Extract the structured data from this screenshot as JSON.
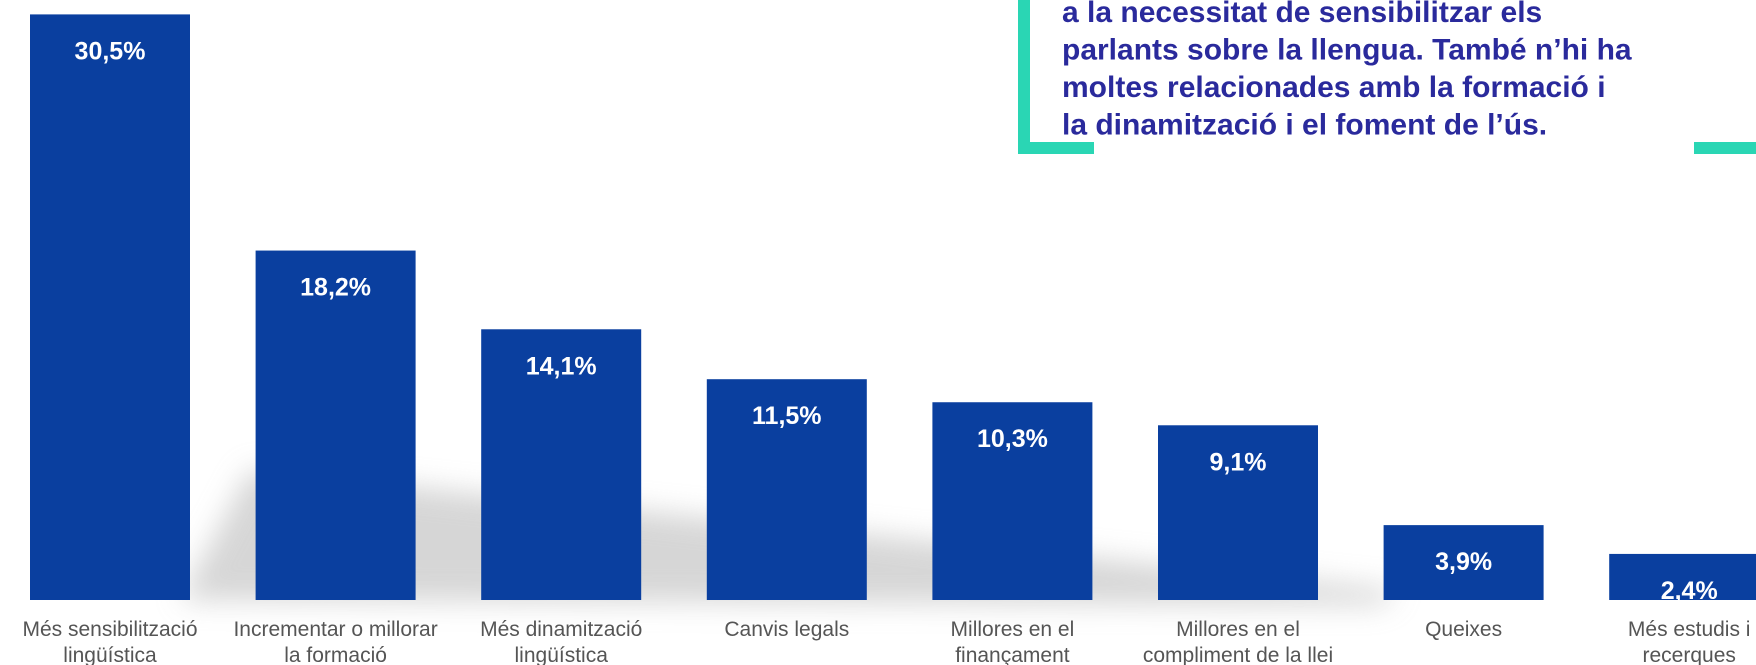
{
  "chart_data": {
    "type": "bar",
    "categories": [
      "Més sensibilització\nlingüística",
      "Incrementar o millorar\nla formació",
      "Més dinamització\nlingüística",
      "Canvis legals",
      "Millores en el\nfinançament",
      "Millores en el\ncompliment de la llei",
      "Queixes",
      "Més estudis i\nrecerques"
    ],
    "values": [
      30.5,
      18.2,
      14.1,
      11.5,
      10.3,
      9.1,
      3.9,
      2.4
    ],
    "value_labels": [
      "30,5%",
      "18,2%",
      "14,1%",
      "11,5%",
      "10,3%",
      "9,1%",
      "3,9%",
      "2,4%"
    ],
    "color": "#0a3f9f",
    "annotations": [
      "a la necessitat de sensibilitzar els",
      "parlants sobre la llengua. També n’hi ha",
      "moltes relacionades amb la formació i",
      "la dinamització i el foment de l’ús."
    ]
  }
}
